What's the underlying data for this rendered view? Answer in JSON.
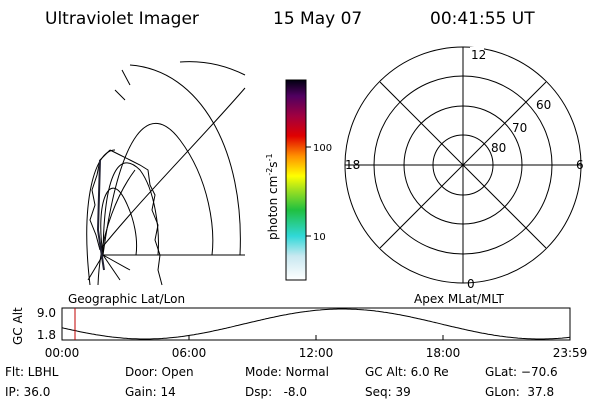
{
  "header": {
    "instrument": "Ultraviolet Imager",
    "date": "15 May 07",
    "time": "00:41:55 UT"
  },
  "colorbar": {
    "label": "photon cm",
    "exp1": "-2",
    "unit2": "s",
    "exp2": "-1",
    "ticks": [
      "100",
      "10"
    ]
  },
  "polar": {
    "mlt_labels": [
      "12",
      "18",
      "6",
      "0"
    ],
    "mlat_labels": [
      "60",
      "70",
      "80"
    ]
  },
  "panels": {
    "left_caption": "Geographic Lat/Lon",
    "right_caption": "Apex MLat/MLT"
  },
  "timeline": {
    "ylabel": "GC Alt",
    "yticks": [
      "9.0",
      "1.8"
    ],
    "xticks": [
      "00:00",
      "06:00",
      "12:00",
      "18:00",
      "23:59"
    ]
  },
  "footer": {
    "rows": [
      [
        "Flt: LBHL",
        "Door: Open",
        "Mode: Normal",
        "GC Alt: 6.0 Re",
        "GLat: −70.6"
      ],
      [
        "IP: 36.0",
        "Gain: 14",
        "Dsp:   -8.0",
        "Seq: 39",
        "GLon:  37.8"
      ]
    ]
  }
}
